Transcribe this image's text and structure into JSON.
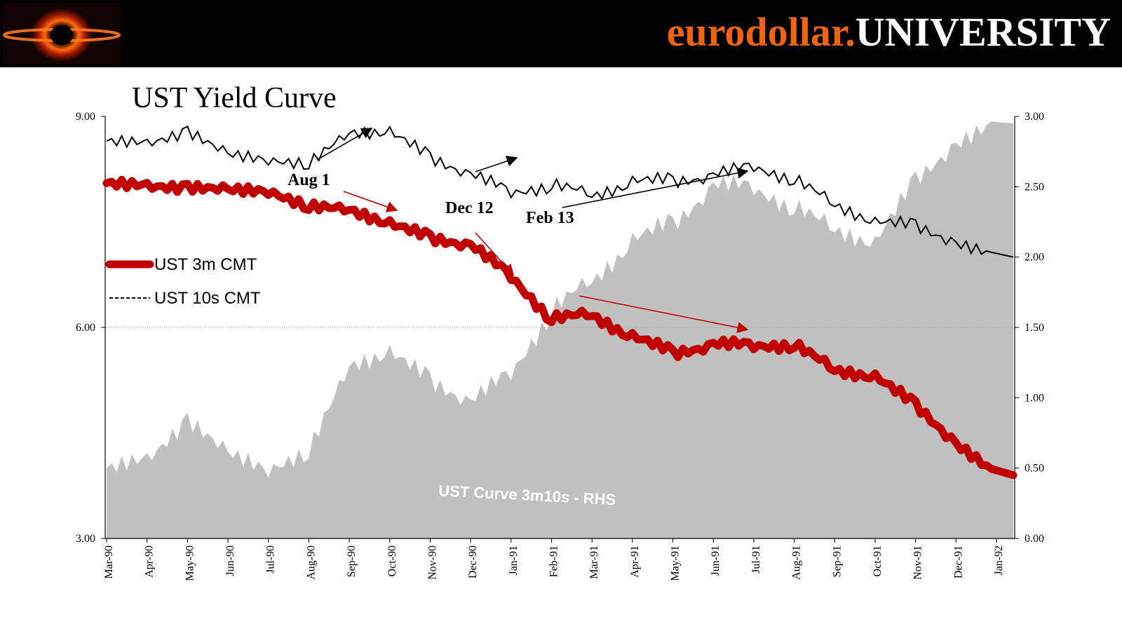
{
  "header": {
    "brand_prefix": "eurodollar.",
    "brand_suffix": "UNIVERSITY",
    "logo_icon": "black-hole-logo-icon",
    "accent_color": "#f0640f"
  },
  "chart_data": {
    "type": "line",
    "title": "UST Yield Curve",
    "xlabel": "",
    "ylabel": "",
    "ylim": [
      3.0,
      9.0
    ],
    "y_ticks": [
      "9.00",
      "6.00",
      "3.00"
    ],
    "y2lim": [
      0.0,
      3.0
    ],
    "y2_ticks": [
      "3.00",
      "2.50",
      "2.00",
      "1.50",
      "1.00",
      "0.50",
      "0.00"
    ],
    "x_ticks": [
      "Mar-90",
      "Apr-90",
      "May-90",
      "Jun-90",
      "Jul-90",
      "Aug-90",
      "Sep-90",
      "Oct-90",
      "Nov-90",
      "Dec-90",
      "Jan-91",
      "Feb-91",
      "Mar-91",
      "Apr-91",
      "May-91",
      "Jun-91",
      "Jul-91",
      "Aug-91",
      "Sep-91",
      "Oct-91",
      "Nov-91",
      "Dec-91",
      "Jan-92"
    ],
    "x": [
      "Mar-90",
      "Apr-90",
      "May-90",
      "Jun-90",
      "Jul-90",
      "Aug-90",
      "Sep-90",
      "Oct-90",
      "Nov-90",
      "Dec-90",
      "Jan-91",
      "Feb-91",
      "Mar-91",
      "Apr-91",
      "May-91",
      "Jun-91",
      "Jul-91",
      "Aug-91",
      "Sep-91",
      "Oct-91",
      "Nov-91",
      "Dec-91",
      "Jan-92"
    ],
    "grid": "horizontal line at 6.00",
    "legend_position": "left, mid-height",
    "series": [
      {
        "name": "UST 3m CMT",
        "axis": "left",
        "style": "thick solid",
        "color": "#c00000",
        "values": [
          8.05,
          8.0,
          8.0,
          7.95,
          7.95,
          7.7,
          7.7,
          7.45,
          7.3,
          7.15,
          6.75,
          6.1,
          6.2,
          5.85,
          5.65,
          5.75,
          5.75,
          5.75,
          5.4,
          5.3,
          4.9,
          4.35,
          3.9
        ]
      },
      {
        "name": "UST 10s CMT",
        "axis": "left",
        "style": "dashed",
        "color": "#000000",
        "values": [
          8.65,
          8.6,
          8.8,
          8.45,
          8.4,
          8.3,
          8.8,
          8.75,
          8.45,
          8.15,
          7.95,
          8.0,
          7.9,
          8.05,
          8.1,
          8.15,
          8.3,
          8.1,
          7.75,
          7.5,
          7.45,
          7.2,
          7.0
        ]
      },
      {
        "name": "UST  Curve 3m10s - RHS",
        "axis": "right",
        "style": "gray filled area",
        "color": "#c0c0c0",
        "values": [
          0.5,
          0.55,
          0.85,
          0.6,
          0.5,
          0.6,
          1.25,
          1.3,
          1.15,
          0.95,
          1.2,
          1.6,
          1.85,
          2.1,
          2.25,
          2.5,
          2.5,
          2.35,
          2.2,
          2.1,
          2.55,
          2.8,
          2.95
        ]
      }
    ],
    "annotations": [
      {
        "text": "Aug 1",
        "x": "Aug-90"
      },
      {
        "text": "Dec 12",
        "x": "Dec-90"
      },
      {
        "text": "Feb 13",
        "x": "Feb-91"
      }
    ]
  }
}
